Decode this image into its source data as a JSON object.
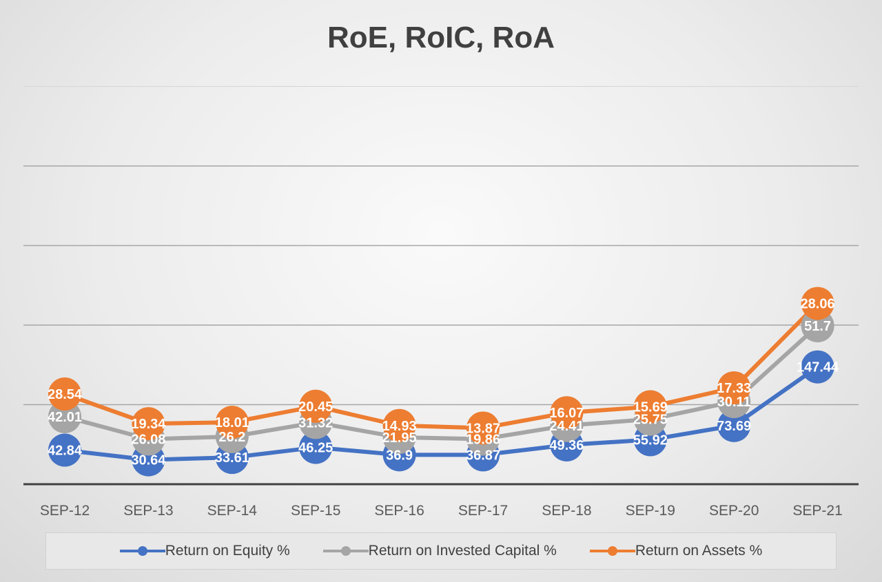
{
  "chart_data": {
    "type": "line",
    "title": "RoE, RoIC, RoA",
    "categories": [
      "SEP-12",
      "SEP-13",
      "SEP-14",
      "SEP-15",
      "SEP-16",
      "SEP-17",
      "SEP-18",
      "SEP-19",
      "SEP-20",
      "SEP-21"
    ],
    "series": [
      {
        "name": "Return on Equity %",
        "color": "#4472C4",
        "values": [
          42.84,
          30.64,
          33.61,
          46.25,
          36.9,
          36.87,
          49.36,
          55.92,
          73.69,
          147.44
        ]
      },
      {
        "name": "Return on Invested Capital %",
        "color": "#A5A5A5",
        "values": [
          42.01,
          26.08,
          26.2,
          31.32,
          21.95,
          19.86,
          24.41,
          25.75,
          30.11,
          51.7
        ]
      },
      {
        "name": "Return on Assets %",
        "color": "#ED7D31",
        "values": [
          28.54,
          19.34,
          18.01,
          20.45,
          14.93,
          13.87,
          16.07,
          15.69,
          17.33,
          28.06
        ]
      }
    ],
    "stacked": true,
    "gridlines": true,
    "legend_position": "bottom",
    "data_labels": true
  }
}
